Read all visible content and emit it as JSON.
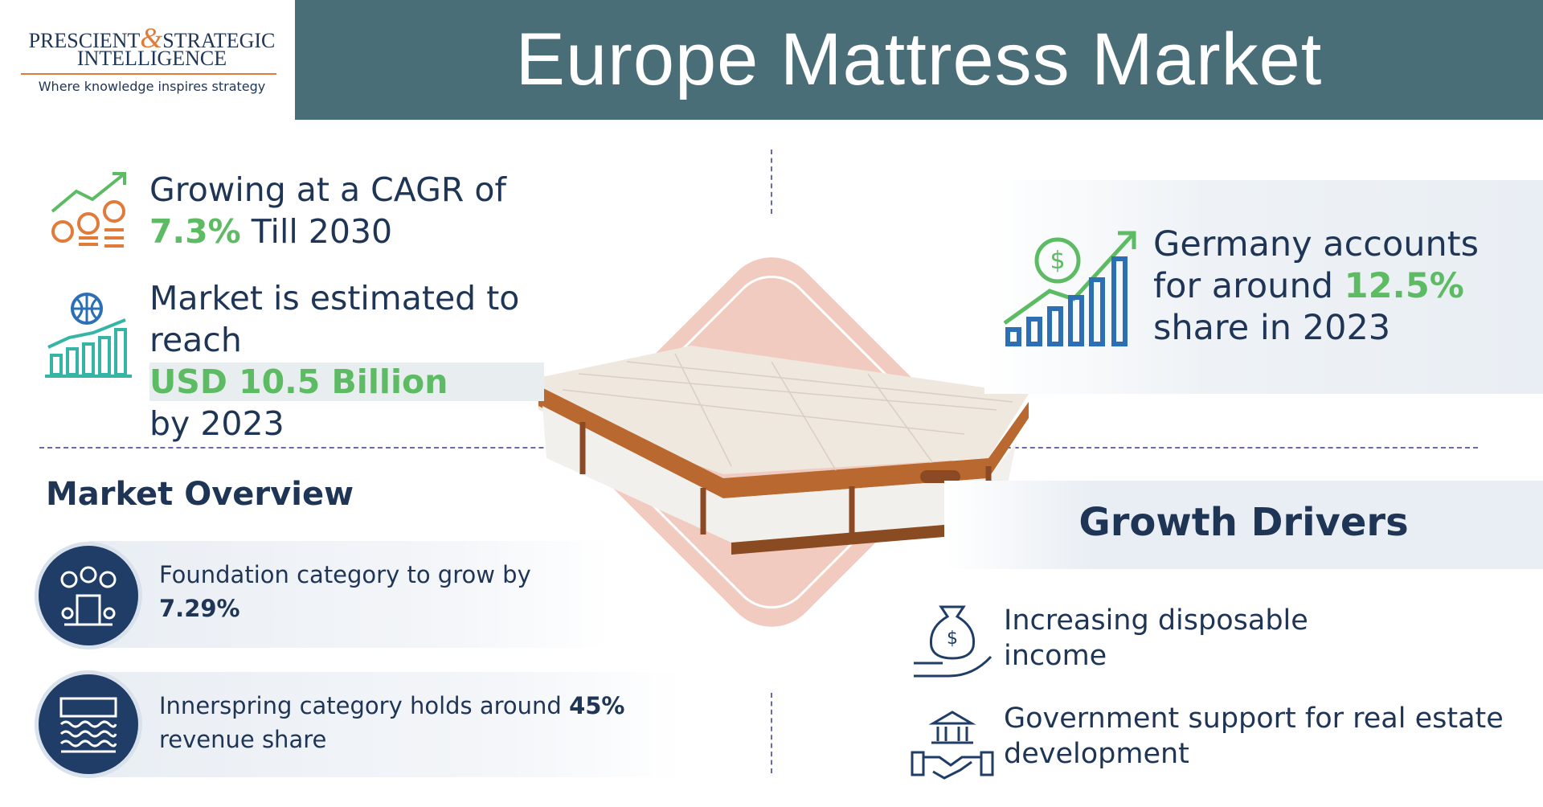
{
  "logo": {
    "word1": "PRESCIENT",
    "amp": "&",
    "word2": "STRATEGIC",
    "word3": "INTELLIGENCE",
    "tagline": "Where knowledge inspires strategy"
  },
  "title": "Europe Mattress Market",
  "highlights": [
    {
      "parts": [
        "Growing at a CAGR of",
        "7.3%",
        "Till 2030"
      ]
    },
    {
      "parts": [
        "Market is estimated to reach",
        "USD 10.5 Billion",
        "by 2023"
      ]
    },
    {
      "parts": [
        "Germany accounts for around",
        "12.5%",
        "share in 2023"
      ]
    }
  ],
  "overview": {
    "heading": "Market Overview",
    "items": [
      {
        "parts": [
          "Foundation category to grow by",
          "7.29%"
        ]
      },
      {
        "parts": [
          "Innerspring category holds around",
          "45%",
          "revenue share"
        ]
      }
    ]
  },
  "drivers": {
    "heading": "Growth Drivers",
    "items": [
      "Increasing disposable income",
      "Government support for real estate development"
    ]
  }
}
